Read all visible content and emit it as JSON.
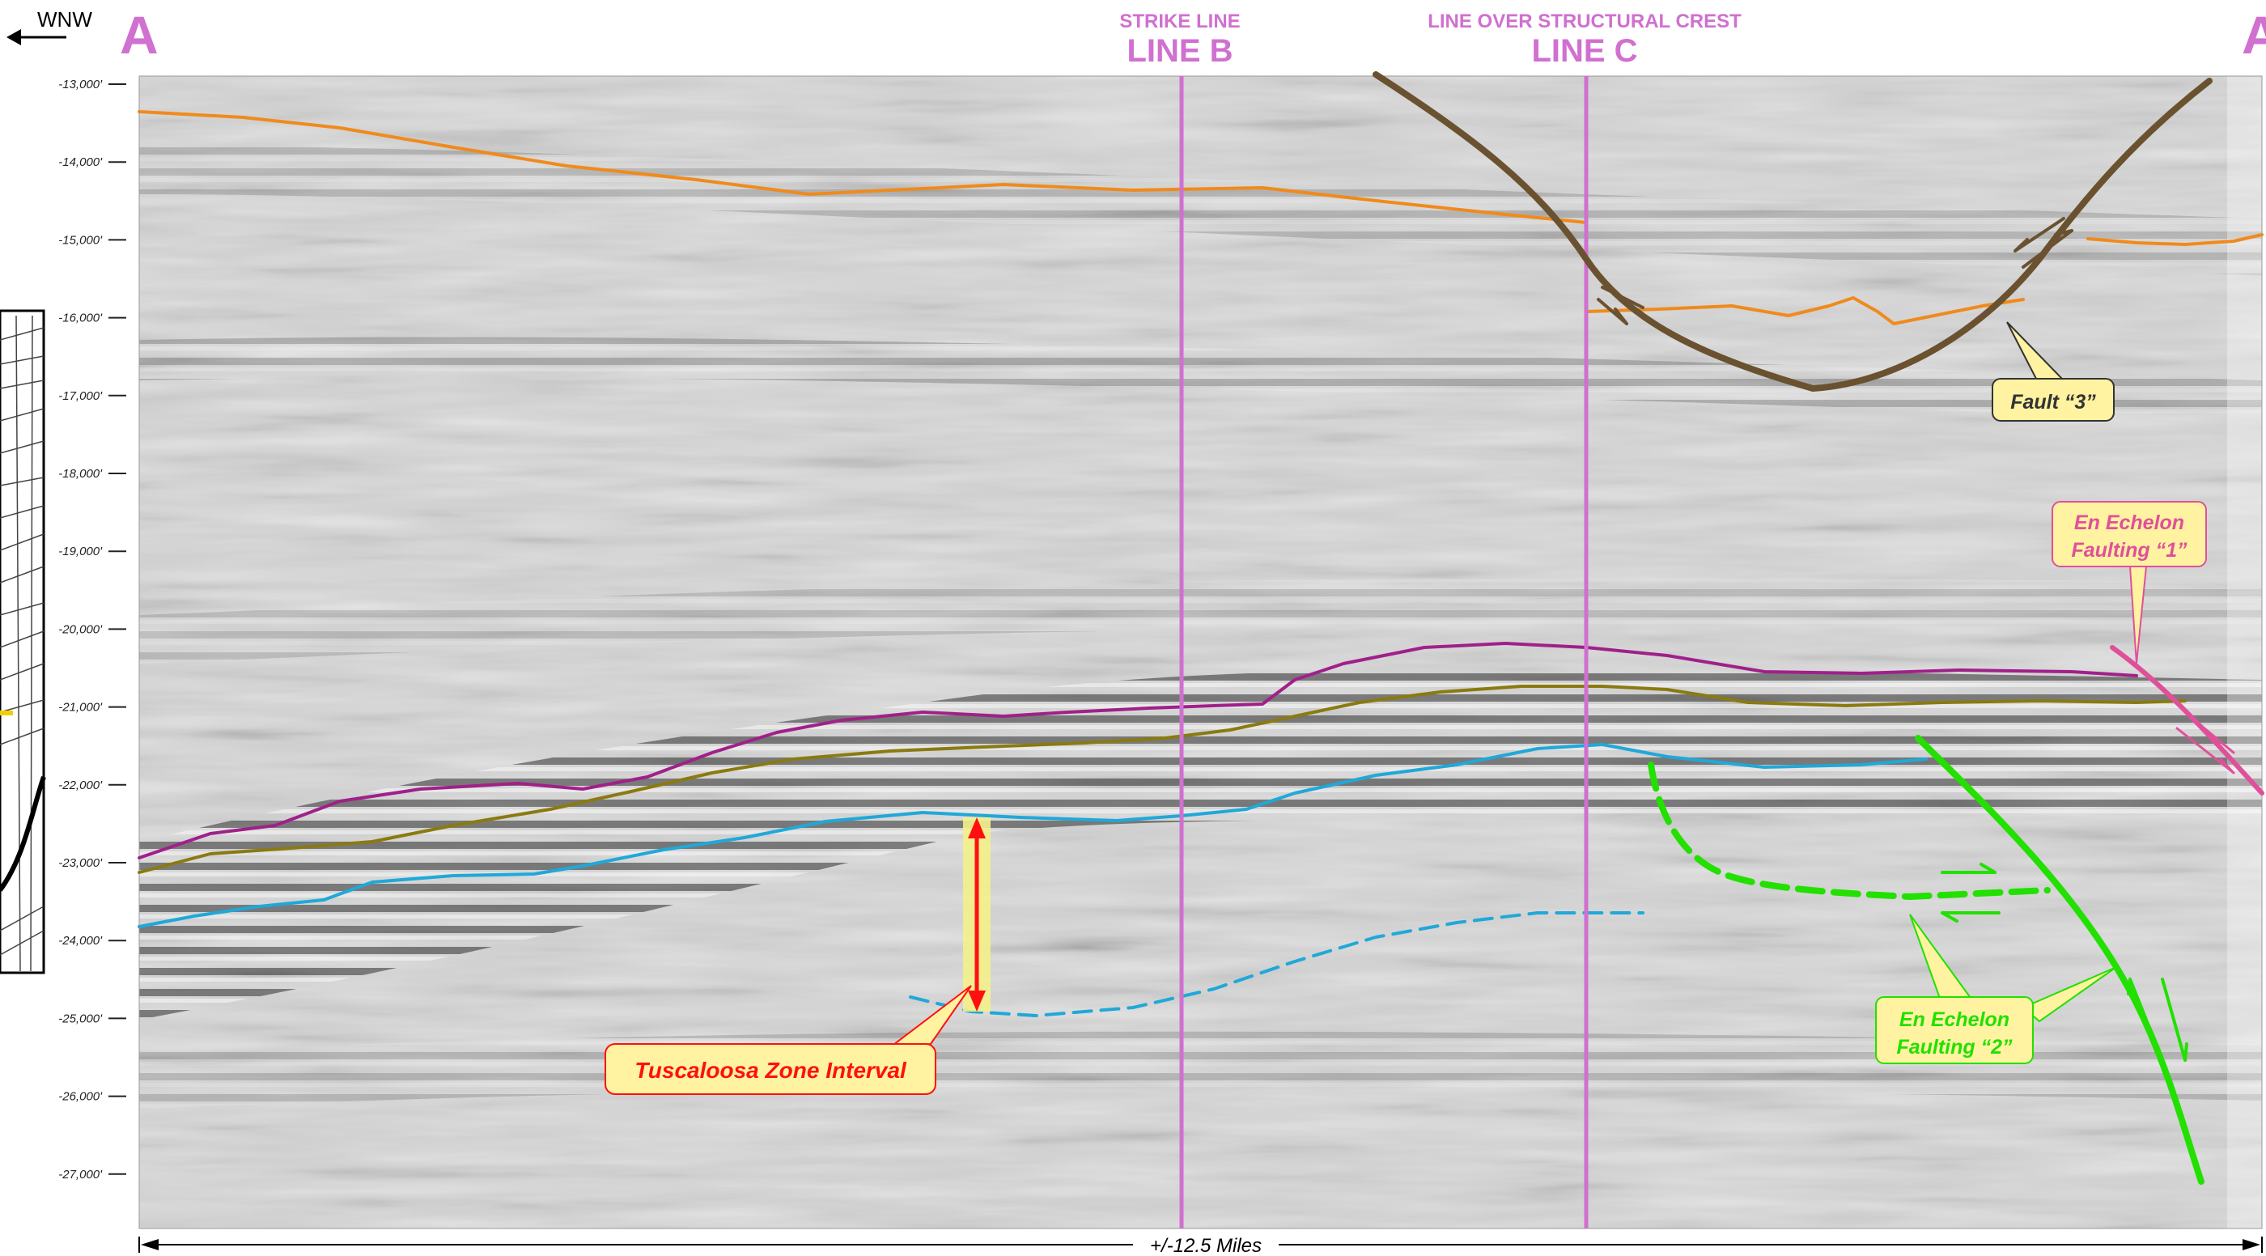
{
  "header": {
    "direction_left": "WNW",
    "section_left": "A",
    "section_right": "A'",
    "line_b_caption": "STRIKE LINE",
    "line_b_name": "LINE B",
    "line_c_caption": "LINE OVER STRUCTURAL CREST",
    "line_c_name": "LINE C"
  },
  "depth_axis": {
    "ticks": [
      "-13,000'",
      "-14,000'",
      "-15,000'",
      "-16,000'",
      "-17,000'",
      "-18,000'",
      "-19,000'",
      "-20,000'",
      "-21,000'",
      "-22,000'",
      "-23,000'",
      "-24,000'",
      "-25,000'",
      "-26,000'",
      "-27,000'"
    ]
  },
  "callouts": {
    "fault_3": "Fault “3”",
    "en_echelon_1_line1": "En Echelon",
    "en_echelon_1_line2": "Faulting “1”",
    "en_echelon_2_line1": "En Echelon",
    "en_echelon_2_line2": "Faulting “2”",
    "tuscaloosa": "Tuscaloosa Zone Interval"
  },
  "scale_bar": {
    "label": "+/-12.5 Miles"
  },
  "colors": {
    "line_marker": "#d070d0",
    "orange_horizon": "#f08a1c",
    "magenta_horizon": "#a0208a",
    "olive_horizon": "#8a7a10",
    "cyan_horizon": "#20a8d8",
    "fault_brown": "#6a5230",
    "fault_green": "#22e000",
    "fault_pink": "#e0509a",
    "callout_yellow": "#fff2a0",
    "tuscaloosa_red": "#ff1010"
  }
}
